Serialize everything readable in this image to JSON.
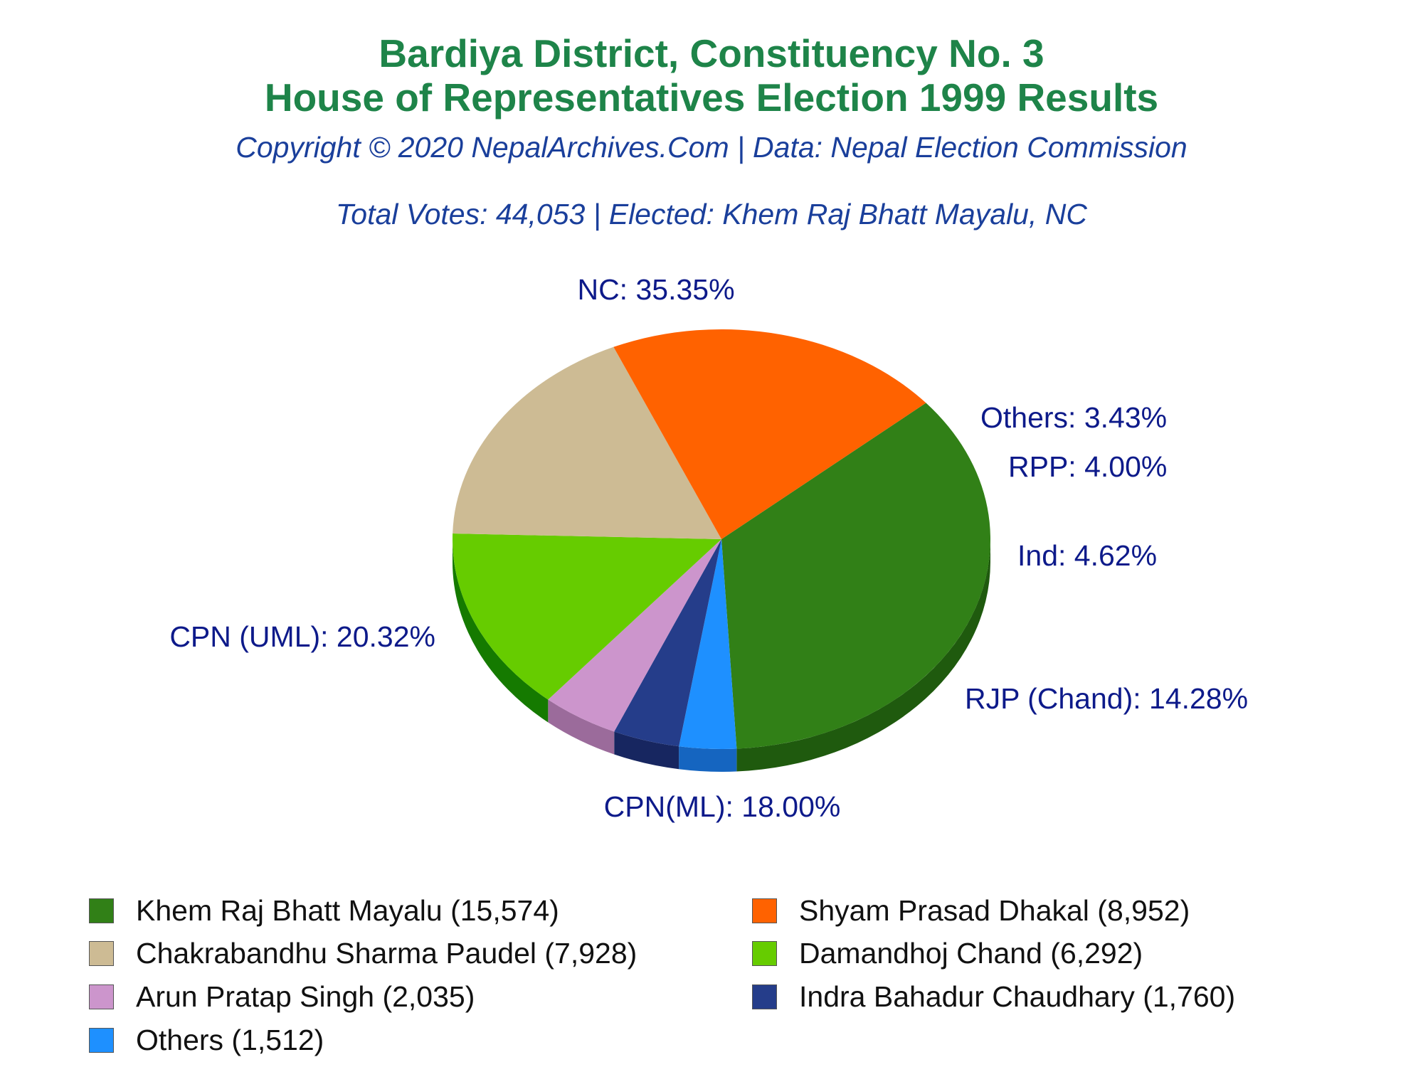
{
  "header": {
    "title_line1": "Bardiya District, Constituency No. 3",
    "title_line2": "House of Representatives Election 1999 Results",
    "copyright": "Copyright © 2020 NepalArchives.Com | Data: Nepal Election Commission",
    "summary": "Total Votes: 44,053 | Elected: Khem Raj Bhatt Mayalu, NC"
  },
  "chart_data": {
    "type": "pie",
    "total_votes": 44053,
    "slices": [
      {
        "party": "NC",
        "label": "NC: 35.35%",
        "percent": 35.35,
        "candidate": "Khem Raj Bhatt Mayalu",
        "votes": 15574,
        "legend": "Khem Raj Bhatt Mayalu (15,574)",
        "color": "#318017",
        "side_color": "#1f5a0e"
      },
      {
        "party": "Others",
        "label": "Others: 3.43%",
        "percent": 3.43,
        "candidate": "Others",
        "votes": 1512,
        "legend": "Others (1,512)",
        "color": "#1e90ff",
        "side_color": "#1565c0"
      },
      {
        "party": "RPP",
        "label": "RPP: 4.00%",
        "percent": 4.0,
        "candidate": "Indra Bahadur Chaudhary",
        "votes": 1760,
        "legend": "Indra Bahadur Chaudhary (1,760)",
        "color": "#253d8a",
        "side_color": "#172660"
      },
      {
        "party": "Ind",
        "label": "Ind: 4.62%",
        "percent": 4.62,
        "candidate": "Arun Pratap Singh",
        "votes": 2035,
        "legend": "Arun Pratap Singh (2,035)",
        "color": "#cc95cc",
        "side_color": "#9b6b9b"
      },
      {
        "party": "RJP (Chand)",
        "label": "RJP (Chand): 14.28%",
        "percent": 14.28,
        "candidate": "Damandhoj Chand",
        "votes": 6292,
        "legend": "Damandhoj Chand (6,292)",
        "color": "#66cc00",
        "side_color": "#157a00"
      },
      {
        "party": "CPN(ML)",
        "label": "CPN(ML): 18.00%",
        "percent": 18.0,
        "candidate": "Chakrabandhu Sharma Paudel",
        "votes": 7928,
        "legend": "Chakrabandhu Sharma Paudel (7,928)",
        "color": "#cdbb94",
        "side_color": "#6f5f3d"
      },
      {
        "party": "CPN (UML)",
        "label": "CPN (UML): 20.32%",
        "percent": 20.32,
        "candidate": "Shyam Prasad Dhakal",
        "votes": 8952,
        "legend": "Shyam Prasad Dhakal (8,952)",
        "color": "#ff6200",
        "side_color": "#a80000"
      }
    ],
    "legend_order": [
      0,
      6,
      5,
      4,
      3,
      2,
      1
    ]
  }
}
